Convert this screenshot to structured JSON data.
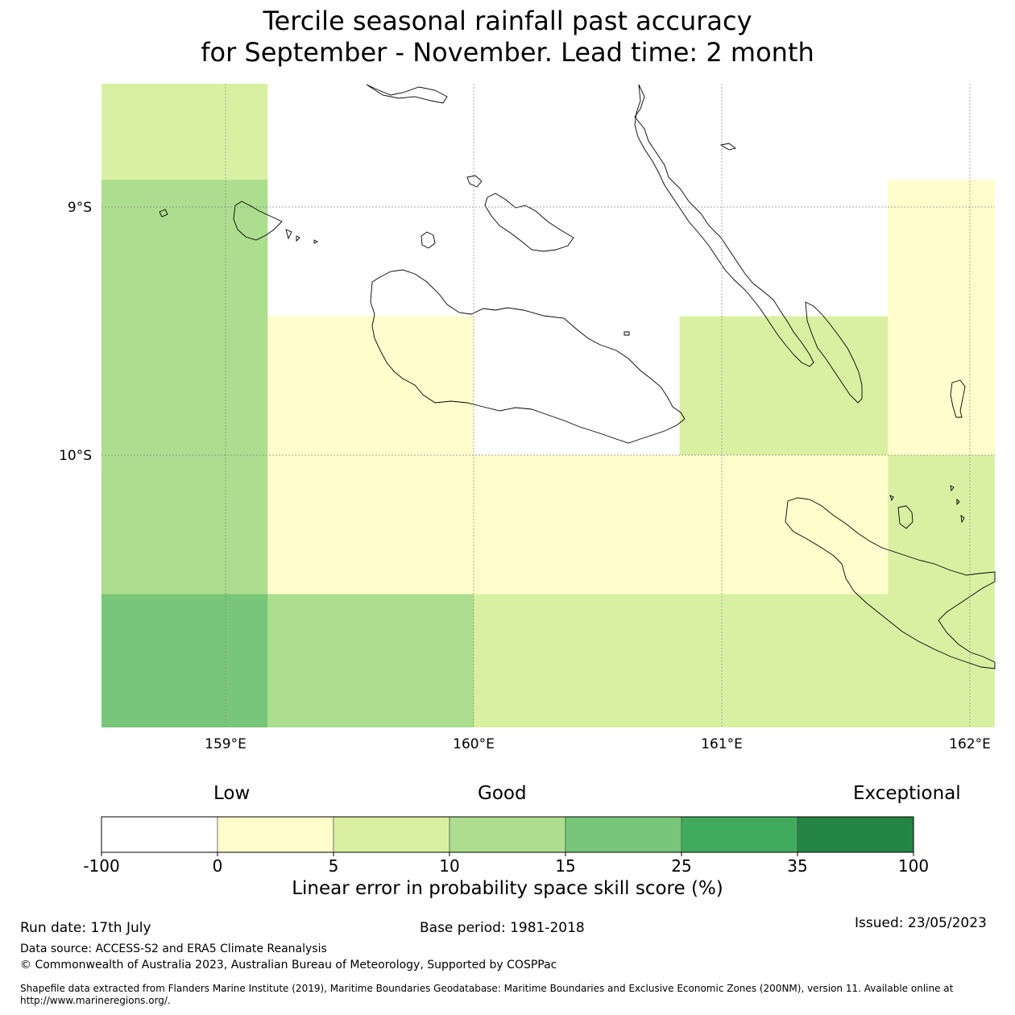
{
  "title": {
    "line1": "Tercile seasonal rainfall past accuracy",
    "line2": "for September - November. Lead time: 2 month"
  },
  "map": {
    "lat_ticks": [
      {
        "label": "9°S",
        "value": -9
      },
      {
        "label": "10°S",
        "value": -10
      }
    ],
    "lon_ticks": [
      {
        "label": "159°E",
        "value": 159
      },
      {
        "label": "160°E",
        "value": 160
      },
      {
        "label": "161°E",
        "value": 161
      },
      {
        "label": "162°E",
        "value": 162
      }
    ],
    "extent": {
      "lon_min": 158.5,
      "lon_max": 162.1,
      "lat_min": -11.1,
      "lat_max": -8.5
    },
    "grid_cells": [
      {
        "lon0": 158.5,
        "lon1": 159.17,
        "lat0": -8.89,
        "lat1": -8.5,
        "class": "5-10"
      },
      {
        "lon0": 158.5,
        "lon1": 159.17,
        "lat0": -10.56,
        "lat1": -8.89,
        "class": "10-15"
      },
      {
        "lon0": 158.5,
        "lon1": 159.17,
        "lat0": -11.1,
        "lat1": -10.56,
        "class": "15-25"
      },
      {
        "lon0": 159.17,
        "lon1": 160.0,
        "lat0": -10.56,
        "lat1": -9.44,
        "class": "0-5"
      },
      {
        "lon0": 159.17,
        "lon1": 160.0,
        "lat0": -11.1,
        "lat1": -10.56,
        "class": "10-15"
      },
      {
        "lon0": 160.0,
        "lon1": 161.67,
        "lat0": -10.56,
        "lat1": -10.0,
        "class": "0-5"
      },
      {
        "lon0": 160.83,
        "lon1": 161.67,
        "lat0": -10.0,
        "lat1": -9.44,
        "class": "5-10"
      },
      {
        "lon0": 160.0,
        "lon1": 162.1,
        "lat0": -11.1,
        "lat1": -10.56,
        "class": "5-10"
      },
      {
        "lon0": 161.67,
        "lon1": 162.1,
        "lat0": -10.56,
        "lat1": -10.0,
        "class": "5-10"
      },
      {
        "lon0": 161.67,
        "lon1": 162.1,
        "lat0": -10.0,
        "lat1": -8.89,
        "class": "0-5"
      }
    ]
  },
  "colorbar": {
    "categories": {
      "low": "Low",
      "good": "Good",
      "exceptional": "Exceptional"
    },
    "bins": [
      {
        "class": "-100-0",
        "color": "#ffffff"
      },
      {
        "class": "0-5",
        "color": "#fffdcc"
      },
      {
        "class": "5-10",
        "color": "#d9f0a3"
      },
      {
        "class": "10-15",
        "color": "#addd8e"
      },
      {
        "class": "15-25",
        "color": "#78c679"
      },
      {
        "class": "25-35",
        "color": "#41ab5d"
      },
      {
        "class": "35-100",
        "color": "#238443"
      }
    ],
    "tick_labels": [
      "-100",
      "0",
      "5",
      "10",
      "15",
      "25",
      "35",
      "100"
    ],
    "title": "Linear error in probability space skill score (%)"
  },
  "footer": {
    "run_date": "Run date: 17th July",
    "base_period": "Base period: 1981-2018",
    "issued": "Issued: 23/05/2023",
    "data_source": "Data source: ACCESS-S2 and ERA5 Climate Reanalysis",
    "copyright": "© Commonwealth of Australia 2023, Australian Bureau of Meteorology, Supported by COSPPac",
    "shapefile_note": "Shapefile data extracted from Flanders Marine Institute (2019), Maritime Boundaries Geodatabase: Maritime Boundaries and Exclusive Economic Zones (200NM), version 11. Available online at http://www.marineregions.org/."
  }
}
